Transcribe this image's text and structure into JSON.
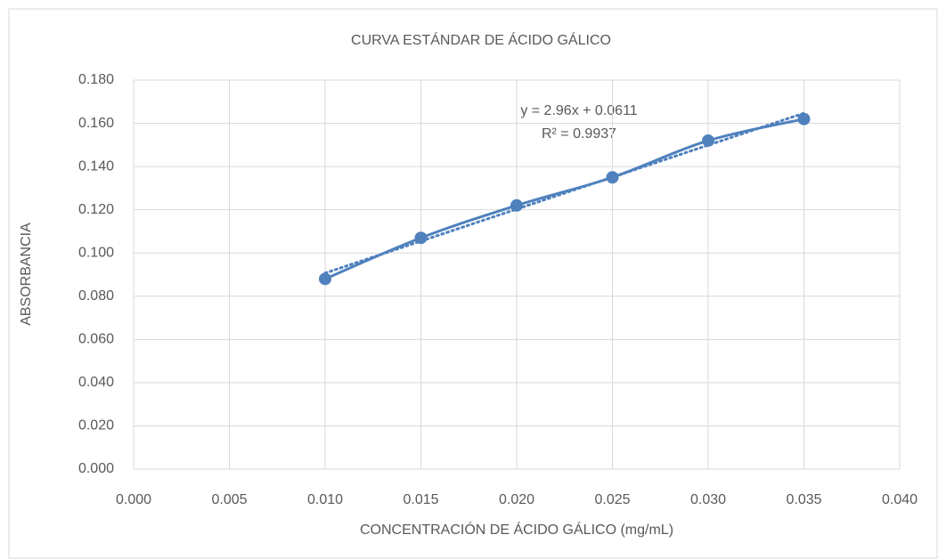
{
  "chart_data": {
    "type": "scatter",
    "title": "CURVA ESTÁNDAR  DE ÁCIDO GÁLICO",
    "x_label": "CONCENTRACIÓN DE ÁCIDO GÁLICO (mg/mL)",
    "y_label": "ABSORBANCIA",
    "x": [
      0.01,
      0.015,
      0.02,
      0.025,
      0.03,
      0.035
    ],
    "series": [
      {
        "name": "Absorbancia",
        "color": "#4f81bd",
        "values": [
          0.088,
          0.107,
          0.122,
          0.135,
          0.152,
          0.162
        ]
      }
    ],
    "xlim": [
      0,
      0.04
    ],
    "ylim": [
      0,
      0.18
    ],
    "xticks": [
      {
        "value": 0,
        "label": "0.000"
      },
      {
        "value": 0.005,
        "label": "0.005"
      },
      {
        "value": 0.01,
        "label": "0.010"
      },
      {
        "value": 0.015,
        "label": "0.015"
      },
      {
        "value": 0.02,
        "label": "0.020"
      },
      {
        "value": 0.025,
        "label": "0.025"
      },
      {
        "value": 0.03,
        "label": "0.030"
      },
      {
        "value": 0.035,
        "label": "0.035"
      },
      {
        "value": 0.04,
        "label": "0.040"
      }
    ],
    "yticks": [
      {
        "value": 0,
        "label": "0.000"
      },
      {
        "value": 0.02,
        "label": "0.020"
      },
      {
        "value": 0.04,
        "label": "0.040"
      },
      {
        "value": 0.06,
        "label": "0.060"
      },
      {
        "value": 0.08,
        "label": "0.080"
      },
      {
        "value": 0.1,
        "label": "0.100"
      },
      {
        "value": 0.12,
        "label": "0.120"
      },
      {
        "value": 0.14,
        "label": "0.140"
      },
      {
        "value": 0.16,
        "label": "0.160"
      },
      {
        "value": 0.18,
        "label": "0.180"
      }
    ],
    "grid": true,
    "smooth": true,
    "trendline": {
      "slope": 2.96,
      "intercept": 0.0611,
      "label": "y = 2.96x + 0.0611",
      "r2_label": "R² = 0.9937"
    }
  }
}
